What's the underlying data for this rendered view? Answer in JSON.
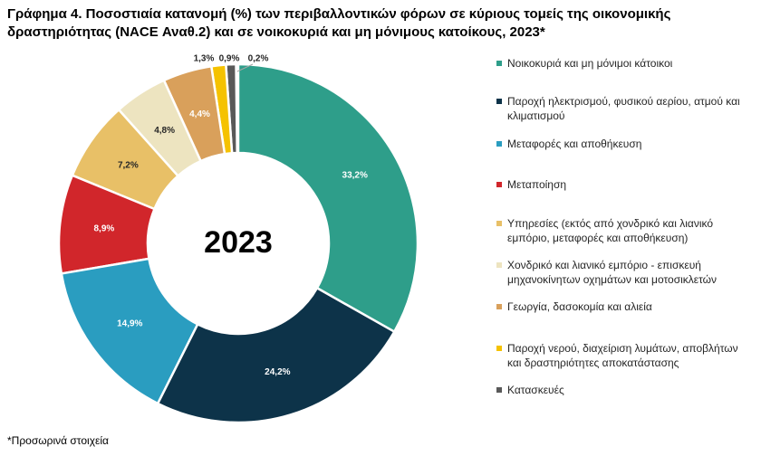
{
  "chart_data": {
    "type": "donut",
    "title": "Γράφημα 4. Ποσοστιαία κατανομή (%) των περιβαλλοντικών φόρων σε κύριους τομείς της οικονομικής δραστηριότητας (NACE Αναθ.2) και σε νοικοκυριά και μη μόνιμους κατοίκους, 2023*",
    "center_label": "2023",
    "footnote": "*Προσωρινά στοιχεία",
    "categories": [
      "Νοικοκυριά και μη μόνιμοι κάτοικοι",
      "Παροχή ηλεκτρισμού, φυσικού αερίου, ατμού και κλιματισμού",
      "Μεταφορές και αποθήκευση",
      "Μεταποίηση",
      "Υπηρεσίες (εκτός από χονδρικό και λιανικό εμπόριο, μεταφορές και αποθήκευση)",
      "Χονδρικό και λιανικό εμπόριο - επισκευή μηχανοκίνητων οχημάτων και μοτοσικλετών",
      "Γεωργία, δασοκομία και αλιεία",
      "Παροχή νερού, διαχείριση λυμάτων, αποβλήτων και δραστηριότητες αποκατάστασης",
      "Κατασκευές",
      null
    ],
    "values": [
      33.2,
      24.2,
      14.9,
      8.9,
      7.2,
      4.8,
      4.4,
      1.3,
      0.9,
      0.2
    ],
    "value_labels": [
      "33,2%",
      "24,2%",
      "14,9%",
      "8,9%",
      "7,2%",
      "4,8%",
      "4,4%",
      "1,3%",
      "0,9%",
      "0,2%"
    ],
    "colors": [
      "#2e9e8a",
      "#0d3349",
      "#2a9dc0",
      "#d1262b",
      "#e8c067",
      "#ede4c0",
      "#d9a05b",
      "#f5c200",
      "#595959",
      "#a6a6a6"
    ]
  }
}
